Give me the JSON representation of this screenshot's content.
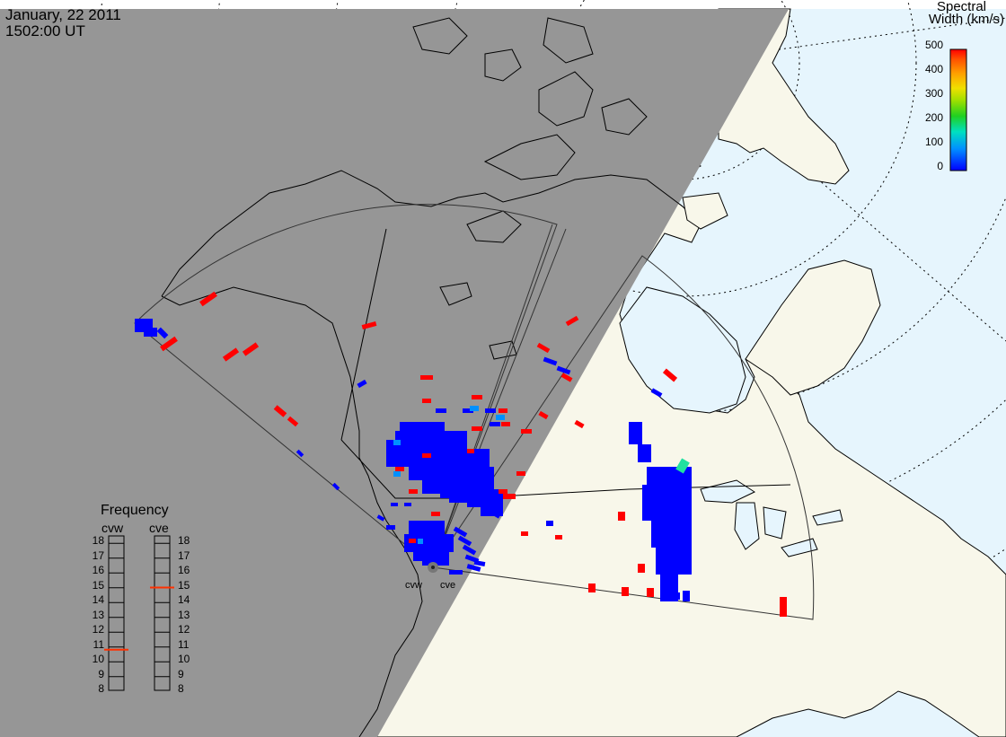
{
  "header": {
    "date": "January, 22 2011",
    "time": "1502:00 UT"
  },
  "colorbar": {
    "title_line1": "Spectral",
    "title_line2": "Width (km/s)",
    "ticks": [
      "500",
      "400",
      "300",
      "200",
      "100",
      "0"
    ],
    "range": [
      0,
      500
    ],
    "colors": [
      "#0000ff",
      "#0090ff",
      "#00e0c0",
      "#20d020",
      "#a0e000",
      "#f0e000",
      "#ffa000",
      "#ff5000",
      "#ff0000"
    ]
  },
  "frequency": {
    "title": "Frequency",
    "radars": [
      "cvw",
      "cve"
    ],
    "ticks": [
      "18",
      "17",
      "16",
      "15",
      "14",
      "13",
      "12",
      "11",
      "10",
      "9",
      "8"
    ],
    "cvw_value": 10.8,
    "cve_value": 15.0,
    "marker_color": "#ff3000"
  },
  "map": {
    "radar_labels": [
      "cvw",
      "cve"
    ],
    "night_color": "#969696",
    "ocean_color": "#e6f5fd",
    "land_color": "#f8f7ea",
    "echo_colors": {
      "low": "#0000ff",
      "high": "#ff0000",
      "mid": "#0090ff",
      "teal": "#20e0a0"
    }
  }
}
